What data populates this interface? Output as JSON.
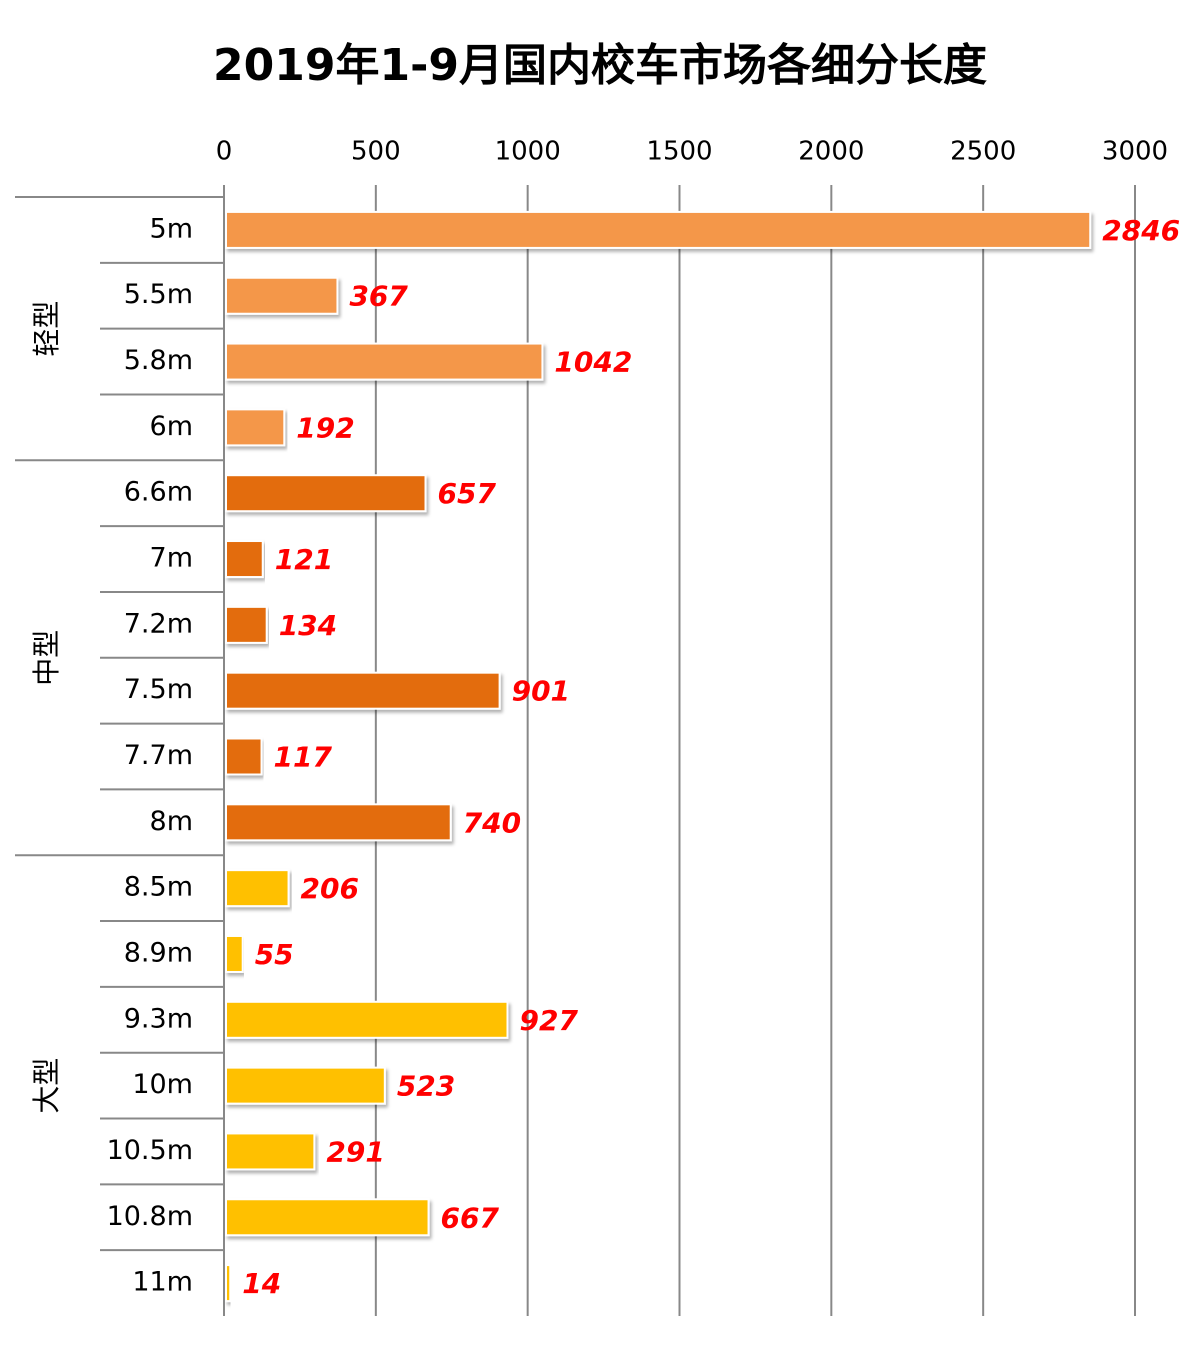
{
  "chart_data": {
    "type": "bar",
    "orientation": "horizontal",
    "title": "2019年1-9月国内校车市场各细分长度",
    "groups": [
      {
        "label": "轻型",
        "color": "#f4974a",
        "categories": [
          "5m",
          "5.5m",
          "5.8m",
          "6m"
        ],
        "values": [
          2846,
          367,
          1042,
          192
        ]
      },
      {
        "label": "中型",
        "color": "#e36c0a",
        "categories": [
          "6.6m",
          "7m",
          "7.2m",
          "7.5m",
          "7.7m",
          "8m"
        ],
        "values": [
          657,
          121,
          134,
          901,
          117,
          740
        ]
      },
      {
        "label": "大型",
        "color": "#ffc000",
        "categories": [
          "8.5m",
          "8.9m",
          "9.3m",
          "10m",
          "10.5m",
          "10.8m",
          "11m"
        ],
        "values": [
          206,
          55,
          927,
          523,
          291,
          667,
          14
        ]
      }
    ],
    "xlim": [
      0,
      3000
    ],
    "xticks": [
      0,
      500,
      1000,
      1500,
      2000,
      2500,
      3000
    ],
    "grid": true,
    "value_label_color": "#ff0000"
  }
}
